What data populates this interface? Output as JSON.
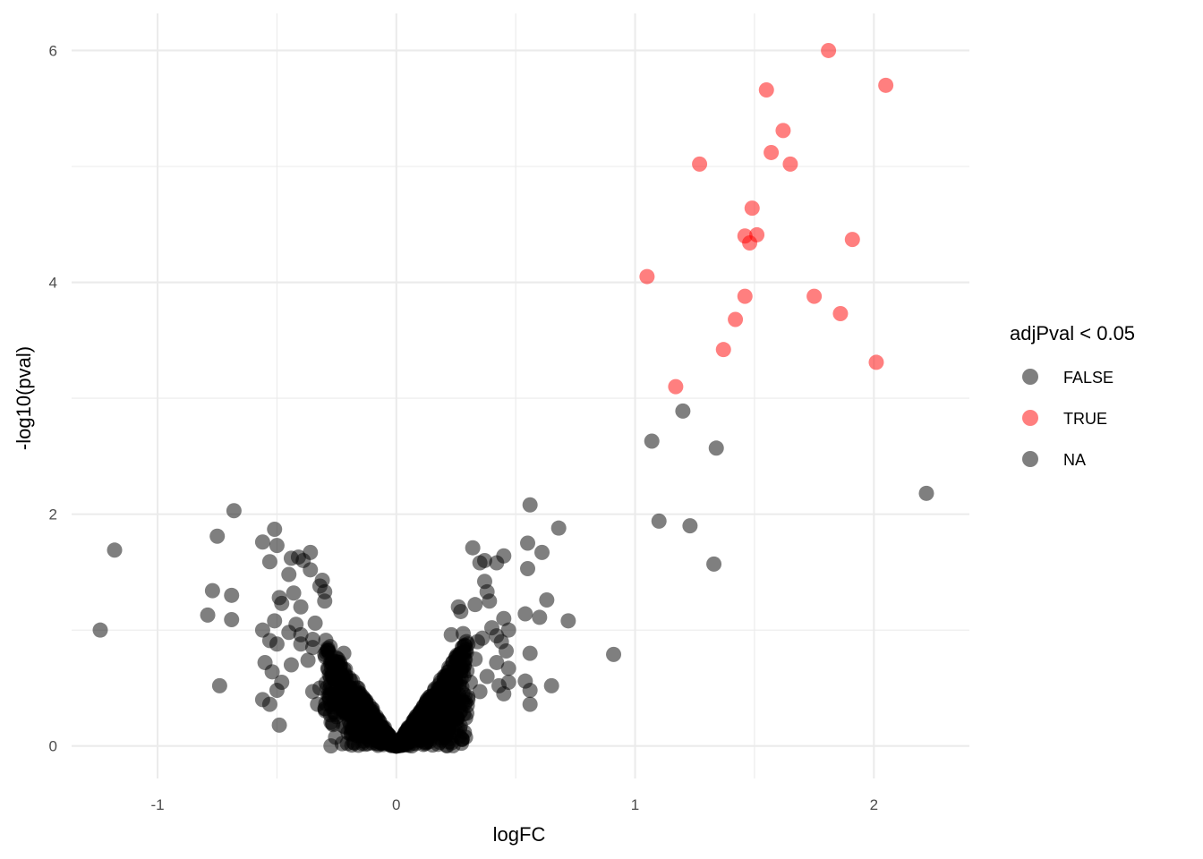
{
  "chart_data": {
    "type": "scatter",
    "title": "",
    "xlabel": "logFC",
    "ylabel": "-log10(pval)",
    "xlim": [
      -1.36,
      2.4
    ],
    "ylim": [
      -0.28,
      6.32
    ],
    "x_ticks": [
      -1,
      0,
      1,
      2
    ],
    "x_tick_labels": [
      "-1",
      "0",
      "1",
      "2"
    ],
    "y_ticks": [
      0,
      2,
      4,
      6
    ],
    "y_tick_labels": [
      "0",
      "2",
      "4",
      "6"
    ],
    "grid": true,
    "legend": {
      "title": "adjPval < 0.05",
      "position": "right",
      "entries": [
        {
          "label": "FALSE",
          "color": "#000000"
        },
        {
          "label": "TRUE",
          "color": "#ff0000"
        },
        {
          "label": "NA",
          "color": "#000000"
        }
      ]
    },
    "point_alpha": 0.5,
    "series": [
      {
        "name": "TRUE",
        "color": "#ff0000",
        "points": [
          [
            1.81,
            6.0
          ],
          [
            2.05,
            5.7
          ],
          [
            1.55,
            5.66
          ],
          [
            1.62,
            5.31
          ],
          [
            1.57,
            5.12
          ],
          [
            1.65,
            5.02
          ],
          [
            1.27,
            5.02
          ],
          [
            1.49,
            4.64
          ],
          [
            1.46,
            4.4
          ],
          [
            1.51,
            4.41
          ],
          [
            1.48,
            4.34
          ],
          [
            1.91,
            4.37
          ],
          [
            1.05,
            4.05
          ],
          [
            1.46,
            3.88
          ],
          [
            1.75,
            3.88
          ],
          [
            1.42,
            3.68
          ],
          [
            1.86,
            3.73
          ],
          [
            1.37,
            3.42
          ],
          [
            2.01,
            3.31
          ],
          [
            1.17,
            3.1
          ]
        ]
      },
      {
        "name": "FALSE",
        "color": "#000000",
        "points": [
          [
            1.2,
            2.89
          ],
          [
            1.07,
            2.63
          ],
          [
            1.34,
            2.57
          ],
          [
            2.22,
            2.18
          ],
          [
            1.1,
            1.94
          ],
          [
            1.23,
            1.9
          ],
          [
            1.33,
            1.57
          ],
          [
            0.91,
            0.79
          ],
          [
            -1.18,
            1.69
          ],
          [
            -1.24,
            1.0
          ],
          [
            -0.68,
            2.03
          ],
          [
            -0.75,
            1.81
          ],
          [
            -0.77,
            1.34
          ],
          [
            -0.69,
            1.3
          ],
          [
            -0.79,
            1.13
          ],
          [
            -0.69,
            1.09
          ],
          [
            -0.74,
            0.52
          ],
          [
            -0.56,
            1.76
          ],
          [
            -0.51,
            1.87
          ],
          [
            -0.5,
            1.73
          ],
          [
            -0.53,
            1.59
          ],
          [
            -0.44,
            1.62
          ],
          [
            -0.41,
            1.63
          ],
          [
            -0.36,
            1.67
          ],
          [
            -0.39,
            1.6
          ],
          [
            -0.36,
            1.52
          ],
          [
            -0.45,
            1.48
          ],
          [
            -0.31,
            1.43
          ],
          [
            -0.32,
            1.38
          ],
          [
            -0.3,
            1.33
          ],
          [
            -0.49,
            1.28
          ],
          [
            -0.48,
            1.23
          ],
          [
            -0.3,
            1.25
          ],
          [
            -0.43,
            1.32
          ],
          [
            -0.4,
            1.2
          ],
          [
            -0.51,
            1.08
          ],
          [
            -0.34,
            1.06
          ],
          [
            -0.56,
            1.0
          ],
          [
            -0.45,
            0.98
          ],
          [
            -0.4,
            0.96
          ],
          [
            -0.5,
            0.88
          ],
          [
            -0.53,
            0.91
          ],
          [
            -0.55,
            0.72
          ],
          [
            -0.52,
            0.64
          ],
          [
            -0.5,
            0.48
          ],
          [
            -0.56,
            0.4
          ],
          [
            -0.53,
            0.36
          ],
          [
            -0.49,
            0.18
          ],
          [
            -0.48,
            0.55
          ],
          [
            -0.44,
            0.7
          ],
          [
            -0.37,
            0.74
          ],
          [
            -0.35,
            0.47
          ],
          [
            -0.33,
            0.36
          ],
          [
            -0.4,
            0.88
          ],
          [
            -0.35,
            0.85
          ],
          [
            -0.3,
            0.79
          ],
          [
            -0.27,
            0.62
          ],
          [
            -0.25,
            0.5
          ],
          [
            -0.24,
            0.42
          ],
          [
            -0.22,
            0.55
          ],
          [
            -0.2,
            0.32
          ],
          [
            -0.18,
            0.46
          ],
          [
            -0.16,
            0.28
          ],
          [
            -0.15,
            0.36
          ],
          [
            -0.12,
            0.12
          ],
          [
            -0.1,
            0.2
          ],
          [
            -0.08,
            0.12
          ],
          [
            -0.06,
            0.07
          ],
          [
            -0.04,
            0.05
          ],
          [
            -0.02,
            0.02
          ],
          [
            -0.13,
            0.08
          ],
          [
            -0.28,
            0.42
          ],
          [
            -0.26,
            0.58
          ],
          [
            -0.22,
            0.8
          ],
          [
            -0.32,
            0.5
          ],
          [
            0.32,
            1.71
          ],
          [
            0.37,
            1.6
          ],
          [
            0.35,
            1.58
          ],
          [
            0.42,
            1.58
          ],
          [
            0.45,
            1.64
          ],
          [
            0.55,
            1.75
          ],
          [
            0.56,
            2.08
          ],
          [
            0.68,
            1.88
          ],
          [
            0.61,
            1.67
          ],
          [
            0.55,
            1.53
          ],
          [
            0.63,
            1.26
          ],
          [
            0.54,
            1.14
          ],
          [
            0.6,
            1.11
          ],
          [
            0.72,
            1.08
          ],
          [
            0.37,
            1.42
          ],
          [
            0.38,
            1.33
          ],
          [
            0.39,
            1.25
          ],
          [
            0.33,
            1.22
          ],
          [
            0.26,
            1.2
          ],
          [
            0.27,
            1.16
          ],
          [
            0.45,
            1.1
          ],
          [
            0.47,
            1.0
          ],
          [
            0.42,
            0.95
          ],
          [
            0.36,
            0.93
          ],
          [
            0.28,
            0.97
          ],
          [
            0.23,
            0.96
          ],
          [
            0.3,
            0.88
          ],
          [
            0.44,
            0.9
          ],
          [
            0.46,
            0.82
          ],
          [
            0.56,
            0.8
          ],
          [
            0.47,
            0.67
          ],
          [
            0.42,
            0.72
          ],
          [
            0.38,
            0.6
          ],
          [
            0.43,
            0.52
          ],
          [
            0.47,
            0.55
          ],
          [
            0.54,
            0.56
          ],
          [
            0.56,
            0.48
          ],
          [
            0.45,
            0.45
          ],
          [
            0.56,
            0.36
          ],
          [
            0.65,
            0.52
          ],
          [
            0.35,
            0.47
          ],
          [
            0.3,
            0.4
          ],
          [
            0.27,
            0.3
          ],
          [
            0.24,
            0.42
          ],
          [
            0.22,
            0.3
          ],
          [
            0.19,
            0.24
          ],
          [
            0.17,
            0.35
          ],
          [
            0.15,
            0.15
          ],
          [
            0.13,
            0.2
          ],
          [
            0.11,
            0.12
          ],
          [
            0.09,
            0.1
          ],
          [
            0.07,
            0.06
          ],
          [
            0.05,
            0.04
          ],
          [
            0.03,
            0.02
          ],
          [
            0.2,
            0.6
          ],
          [
            0.28,
            0.65
          ],
          [
            0.33,
            0.75
          ],
          [
            0.25,
            0.52
          ],
          [
            0.18,
            0.48
          ],
          [
            0.12,
            0.3
          ],
          [
            0.31,
            0.55
          ],
          [
            0.22,
            0.2
          ]
        ]
      }
    ],
    "cloud_spread": [
      [
        -0.42,
        1.05
      ],
      [
        -0.35,
        0.92
      ],
      [
        -0.28,
        0.8
      ],
      [
        -0.22,
        0.66
      ],
      [
        -0.16,
        0.5
      ],
      [
        -0.1,
        0.32
      ],
      [
        -0.05,
        0.16
      ],
      [
        0.0,
        0.0
      ],
      [
        0.05,
        0.16
      ],
      [
        0.1,
        0.3
      ],
      [
        0.16,
        0.48
      ],
      [
        0.22,
        0.64
      ],
      [
        0.28,
        0.78
      ],
      [
        0.34,
        0.9
      ],
      [
        0.4,
        1.02
      ]
    ]
  }
}
